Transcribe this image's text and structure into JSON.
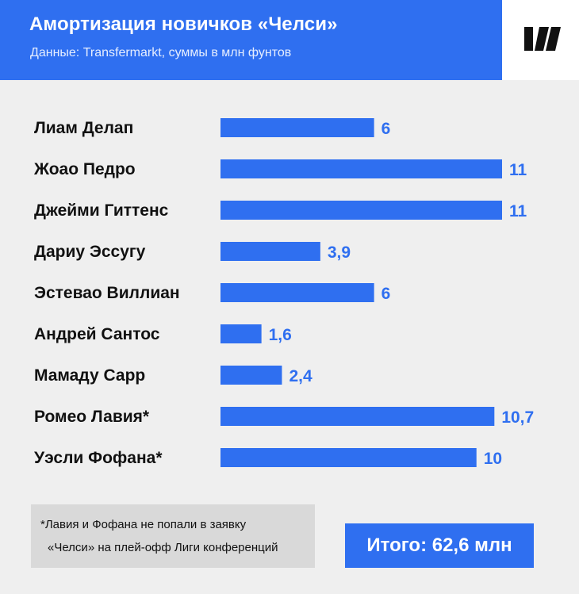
{
  "header": {
    "title": "Амортизация новичков «Челси»",
    "subtitle": "Данные: Transfermarkt, суммы в млн фунтов"
  },
  "logo": {
    "icon": "brand-logo-icon"
  },
  "colors": {
    "accent": "#2f6ff0",
    "background": "#efefef",
    "value_text": "#2f6ff0",
    "name_text": "#111111",
    "footnote_bg": "#d9d9d9"
  },
  "chart_data": {
    "type": "bar",
    "orientation": "horizontal",
    "categories": [
      "Лиам Делап",
      "Жоао Педро",
      "Джейми Гиттенс",
      "Дариу Эссугу",
      "Эстевао Виллиан",
      "Андрей Сантос",
      "Мамаду Сарр",
      "Ромео Лавия*",
      "Уэсли Фофана*"
    ],
    "values": [
      6,
      11,
      11,
      3.9,
      6,
      1.6,
      2.4,
      10.7,
      10
    ],
    "value_labels": [
      "6",
      "11",
      "11",
      "3,9",
      "6",
      "1,6",
      "2,4",
      "10,7",
      "10"
    ],
    "xlim": [
      0,
      11
    ],
    "grid": false,
    "legend": "none"
  },
  "footnote": {
    "line1": "*Лавия и Фофана не попали в заявку",
    "line2": "«Челси» на плей-офф Лиги конференций"
  },
  "total": {
    "label": "Итого: 62,6 млн"
  }
}
